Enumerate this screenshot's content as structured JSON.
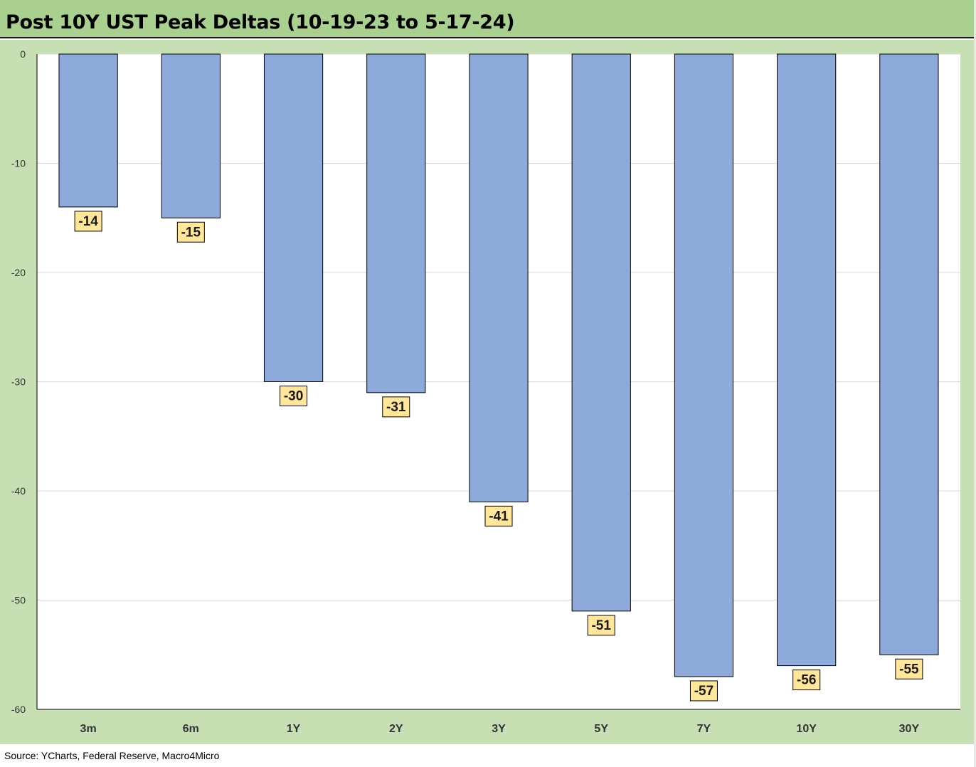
{
  "title": "Post 10Y UST Peak Deltas (10-19-23 to 5-17-24)",
  "source": "Source: YCharts, Federal Reserve, Macro4Micro",
  "colors": {
    "title_bg": "#a9d08e",
    "chart_bg": "#c6e0b4",
    "plot_bg": "#ffffff",
    "bar_fill": "#8eaadb",
    "label_bg": "#ffe699",
    "gridline": "#d9d9d9"
  },
  "chart_data": {
    "type": "bar",
    "title": "Post 10Y UST Peak Deltas (10-19-23 to 5-17-24)",
    "categories": [
      "3m",
      "6m",
      "1Y",
      "2Y",
      "3Y",
      "5Y",
      "7Y",
      "10Y",
      "30Y"
    ],
    "values": [
      -14,
      -15,
      -30,
      -31,
      -41,
      -51,
      -57,
      -56,
      -55
    ],
    "data_labels": [
      "-14",
      "-15",
      "-30",
      "-31",
      "-41",
      "-51",
      "-57",
      "-56",
      "-55"
    ],
    "yticks": [
      0,
      -10,
      -20,
      -30,
      -40,
      -50,
      -60
    ],
    "ylim": [
      -60,
      0
    ],
    "xlabel": "",
    "ylabel": "",
    "grid": true,
    "legend": "none"
  }
}
